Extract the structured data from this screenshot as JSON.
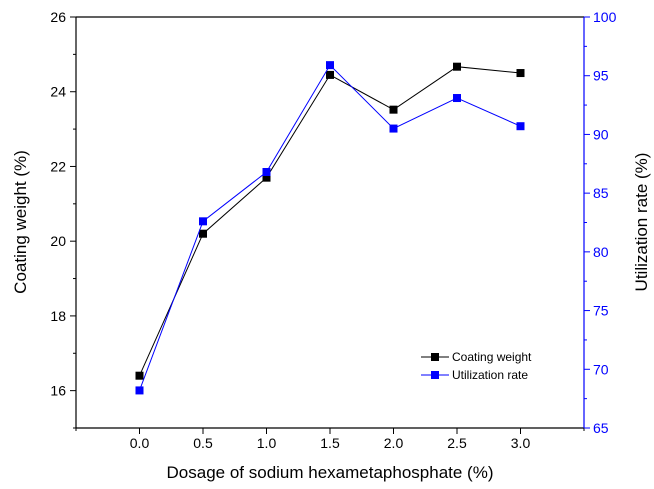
{
  "chart_data": {
    "type": "line",
    "x": [
      0.0,
      0.5,
      1.0,
      1.5,
      2.0,
      2.5,
      3.0
    ],
    "x_tick_labels": [
      "0.0",
      "0.5",
      "1.0",
      "1.5",
      "2.0",
      "2.5",
      "3.0"
    ],
    "xlim": [
      -0.5,
      3.5
    ],
    "xlabel": "Dosage of sodium hexametaphosphate (%)",
    "y_left": {
      "label": "Coating weight (%)",
      "lim": [
        15,
        26
      ],
      "ticks": [
        16,
        18,
        20,
        22,
        24,
        26
      ],
      "tick_labels": [
        "16",
        "18",
        "20",
        "22",
        "24",
        "26"
      ],
      "color": "#000000"
    },
    "y_right": {
      "label": "Utilization rate (%)",
      "lim": [
        65,
        100
      ],
      "ticks": [
        65,
        70,
        75,
        80,
        85,
        90,
        95,
        100
      ],
      "tick_labels": [
        "65",
        "70",
        "75",
        "80",
        "85",
        "90",
        "95",
        "100"
      ],
      "color": "#0000ff"
    },
    "series": [
      {
        "name": "Coating weight",
        "axis": "left",
        "color": "#000000",
        "marker": "square",
        "values": [
          16.4,
          20.2,
          21.7,
          24.45,
          23.52,
          24.67,
          24.5
        ]
      },
      {
        "name": "Utilization rate",
        "axis": "right",
        "color": "#0000ff",
        "marker": "square",
        "values": [
          68.2,
          82.6,
          86.8,
          95.9,
          90.5,
          93.1,
          90.7
        ]
      }
    ],
    "legend_position": "bottom-right",
    "grid": false
  }
}
